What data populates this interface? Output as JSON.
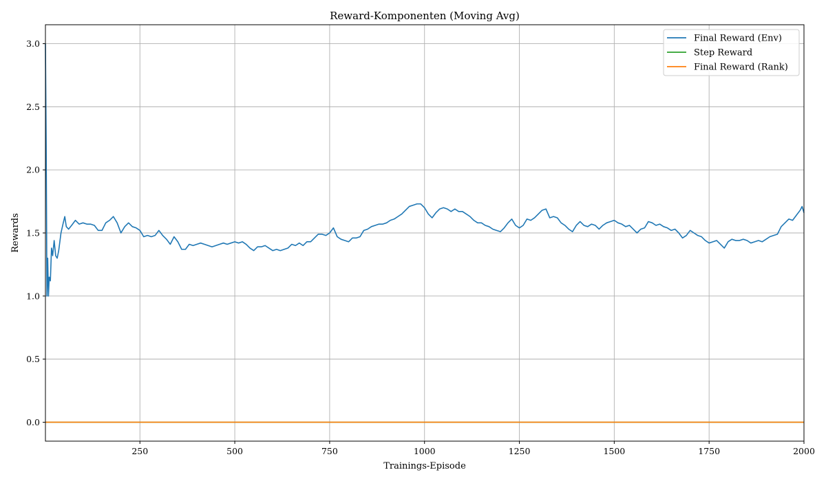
{
  "chart_data": {
    "type": "line",
    "title": "Reward-Komponenten (Moving Avg)",
    "xlabel": "Trainings-Episode",
    "ylabel": "Rewards",
    "xlim": [
      1,
      2000
    ],
    "ylim": [
      -0.15,
      3.15
    ],
    "x_ticks": [
      250,
      500,
      750,
      1000,
      1250,
      1500,
      1750,
      2000
    ],
    "x_tick_labels": [
      "250",
      "500",
      "750",
      "1000",
      "1250",
      "1500",
      "1750",
      "2000"
    ],
    "y_ticks": [
      0.0,
      0.5,
      1.0,
      1.5,
      2.0,
      2.5,
      3.0
    ],
    "y_tick_labels": [
      "0.0",
      "0.5",
      "1.0",
      "1.5",
      "2.0",
      "2.5",
      "3.0"
    ],
    "grid": true,
    "legend_position": "top-right",
    "series": [
      {
        "name": "Final Reward (Env)",
        "color": "#1f77b4",
        "points": [
          [
            1,
            3.0
          ],
          [
            3,
            2.2
          ],
          [
            5,
            1.0
          ],
          [
            7,
            1.3
          ],
          [
            9,
            1.0
          ],
          [
            11,
            1.15
          ],
          [
            14,
            1.12
          ],
          [
            17,
            1.38
          ],
          [
            20,
            1.32
          ],
          [
            24,
            1.44
          ],
          [
            28,
            1.32
          ],
          [
            32,
            1.3
          ],
          [
            36,
            1.36
          ],
          [
            42,
            1.5
          ],
          [
            48,
            1.58
          ],
          [
            52,
            1.63
          ],
          [
            56,
            1.55
          ],
          [
            62,
            1.53
          ],
          [
            70,
            1.56
          ],
          [
            80,
            1.6
          ],
          [
            90,
            1.57
          ],
          [
            100,
            1.58
          ],
          [
            110,
            1.57
          ],
          [
            120,
            1.57
          ],
          [
            130,
            1.56
          ],
          [
            140,
            1.52
          ],
          [
            150,
            1.52
          ],
          [
            160,
            1.58
          ],
          [
            170,
            1.6
          ],
          [
            180,
            1.63
          ],
          [
            190,
            1.58
          ],
          [
            200,
            1.5
          ],
          [
            210,
            1.55
          ],
          [
            220,
            1.58
          ],
          [
            230,
            1.55
          ],
          [
            240,
            1.54
          ],
          [
            250,
            1.52
          ],
          [
            260,
            1.47
          ],
          [
            270,
            1.48
          ],
          [
            280,
            1.47
          ],
          [
            290,
            1.48
          ],
          [
            300,
            1.52
          ],
          [
            310,
            1.48
          ],
          [
            320,
            1.45
          ],
          [
            330,
            1.41
          ],
          [
            340,
            1.47
          ],
          [
            350,
            1.43
          ],
          [
            360,
            1.37
          ],
          [
            370,
            1.37
          ],
          [
            380,
            1.41
          ],
          [
            390,
            1.4
          ],
          [
            400,
            1.41
          ],
          [
            410,
            1.42
          ],
          [
            420,
            1.41
          ],
          [
            430,
            1.4
          ],
          [
            440,
            1.39
          ],
          [
            450,
            1.4
          ],
          [
            460,
            1.41
          ],
          [
            470,
            1.42
          ],
          [
            480,
            1.41
          ],
          [
            490,
            1.42
          ],
          [
            500,
            1.43
          ],
          [
            510,
            1.42
          ],
          [
            520,
            1.43
          ],
          [
            530,
            1.41
          ],
          [
            540,
            1.38
          ],
          [
            550,
            1.36
          ],
          [
            560,
            1.39
          ],
          [
            570,
            1.39
          ],
          [
            580,
            1.4
          ],
          [
            590,
            1.38
          ],
          [
            600,
            1.36
          ],
          [
            610,
            1.37
          ],
          [
            620,
            1.36
          ],
          [
            630,
            1.37
          ],
          [
            640,
            1.38
          ],
          [
            650,
            1.41
          ],
          [
            660,
            1.4
          ],
          [
            670,
            1.42
          ],
          [
            680,
            1.4
          ],
          [
            690,
            1.43
          ],
          [
            700,
            1.43
          ],
          [
            710,
            1.46
          ],
          [
            720,
            1.49
          ],
          [
            730,
            1.49
          ],
          [
            740,
            1.48
          ],
          [
            750,
            1.5
          ],
          [
            760,
            1.54
          ],
          [
            770,
            1.47
          ],
          [
            780,
            1.45
          ],
          [
            790,
            1.44
          ],
          [
            800,
            1.43
          ],
          [
            810,
            1.46
          ],
          [
            820,
            1.46
          ],
          [
            830,
            1.47
          ],
          [
            840,
            1.52
          ],
          [
            850,
            1.53
          ],
          [
            860,
            1.55
          ],
          [
            870,
            1.56
          ],
          [
            880,
            1.57
          ],
          [
            890,
            1.57
          ],
          [
            900,
            1.58
          ],
          [
            910,
            1.6
          ],
          [
            920,
            1.61
          ],
          [
            930,
            1.63
          ],
          [
            940,
            1.65
          ],
          [
            950,
            1.68
          ],
          [
            960,
            1.71
          ],
          [
            970,
            1.72
          ],
          [
            980,
            1.73
          ],
          [
            990,
            1.73
          ],
          [
            1000,
            1.7
          ],
          [
            1010,
            1.65
          ],
          [
            1020,
            1.62
          ],
          [
            1030,
            1.66
          ],
          [
            1040,
            1.69
          ],
          [
            1050,
            1.7
          ],
          [
            1060,
            1.69
          ],
          [
            1070,
            1.67
          ],
          [
            1080,
            1.69
          ],
          [
            1090,
            1.67
          ],
          [
            1100,
            1.67
          ],
          [
            1110,
            1.65
          ],
          [
            1120,
            1.63
          ],
          [
            1130,
            1.6
          ],
          [
            1140,
            1.58
          ],
          [
            1150,
            1.58
          ],
          [
            1160,
            1.56
          ],
          [
            1170,
            1.55
          ],
          [
            1180,
            1.53
          ],
          [
            1190,
            1.52
          ],
          [
            1200,
            1.51
          ],
          [
            1210,
            1.54
          ],
          [
            1220,
            1.58
          ],
          [
            1230,
            1.61
          ],
          [
            1240,
            1.56
          ],
          [
            1250,
            1.54
          ],
          [
            1260,
            1.56
          ],
          [
            1270,
            1.61
          ],
          [
            1280,
            1.6
          ],
          [
            1290,
            1.62
          ],
          [
            1300,
            1.65
          ],
          [
            1310,
            1.68
          ],
          [
            1320,
            1.69
          ],
          [
            1330,
            1.62
          ],
          [
            1340,
            1.63
          ],
          [
            1350,
            1.62
          ],
          [
            1360,
            1.58
          ],
          [
            1370,
            1.56
          ],
          [
            1380,
            1.53
          ],
          [
            1390,
            1.51
          ],
          [
            1400,
            1.56
          ],
          [
            1410,
            1.59
          ],
          [
            1420,
            1.56
          ],
          [
            1430,
            1.55
          ],
          [
            1440,
            1.57
          ],
          [
            1450,
            1.56
          ],
          [
            1460,
            1.53
          ],
          [
            1470,
            1.56
          ],
          [
            1480,
            1.58
          ],
          [
            1490,
            1.59
          ],
          [
            1500,
            1.6
          ],
          [
            1510,
            1.58
          ],
          [
            1520,
            1.57
          ],
          [
            1530,
            1.55
          ],
          [
            1540,
            1.56
          ],
          [
            1550,
            1.53
          ],
          [
            1560,
            1.5
          ],
          [
            1570,
            1.53
          ],
          [
            1580,
            1.54
          ],
          [
            1590,
            1.59
          ],
          [
            1600,
            1.58
          ],
          [
            1610,
            1.56
          ],
          [
            1620,
            1.57
          ],
          [
            1630,
            1.55
          ],
          [
            1640,
            1.54
          ],
          [
            1650,
            1.52
          ],
          [
            1660,
            1.53
          ],
          [
            1670,
            1.5
          ],
          [
            1680,
            1.46
          ],
          [
            1690,
            1.48
          ],
          [
            1700,
            1.52
          ],
          [
            1710,
            1.5
          ],
          [
            1720,
            1.48
          ],
          [
            1730,
            1.47
          ],
          [
            1740,
            1.44
          ],
          [
            1750,
            1.42
          ],
          [
            1760,
            1.43
          ],
          [
            1770,
            1.44
          ],
          [
            1780,
            1.41
          ],
          [
            1790,
            1.38
          ],
          [
            1800,
            1.43
          ],
          [
            1810,
            1.45
          ],
          [
            1820,
            1.44
          ],
          [
            1830,
            1.44
          ],
          [
            1840,
            1.45
          ],
          [
            1850,
            1.44
          ],
          [
            1860,
            1.42
          ],
          [
            1870,
            1.43
          ],
          [
            1880,
            1.44
          ],
          [
            1890,
            1.43
          ],
          [
            1900,
            1.45
          ],
          [
            1910,
            1.47
          ],
          [
            1920,
            1.48
          ],
          [
            1930,
            1.49
          ],
          [
            1940,
            1.55
          ],
          [
            1950,
            1.58
          ],
          [
            1960,
            1.61
          ],
          [
            1970,
            1.6
          ],
          [
            1980,
            1.64
          ],
          [
            1990,
            1.68
          ],
          [
            1995,
            1.71
          ],
          [
            2000,
            1.66
          ]
        ]
      },
      {
        "name": "Step Reward",
        "color": "#2ca02c",
        "points": [
          [
            1,
            0.0
          ],
          [
            2000,
            0.0
          ]
        ]
      },
      {
        "name": "Final Reward (Rank)",
        "color": "#ff7f0e",
        "points": [
          [
            1,
            0.0
          ],
          [
            2000,
            0.0
          ]
        ]
      }
    ]
  }
}
